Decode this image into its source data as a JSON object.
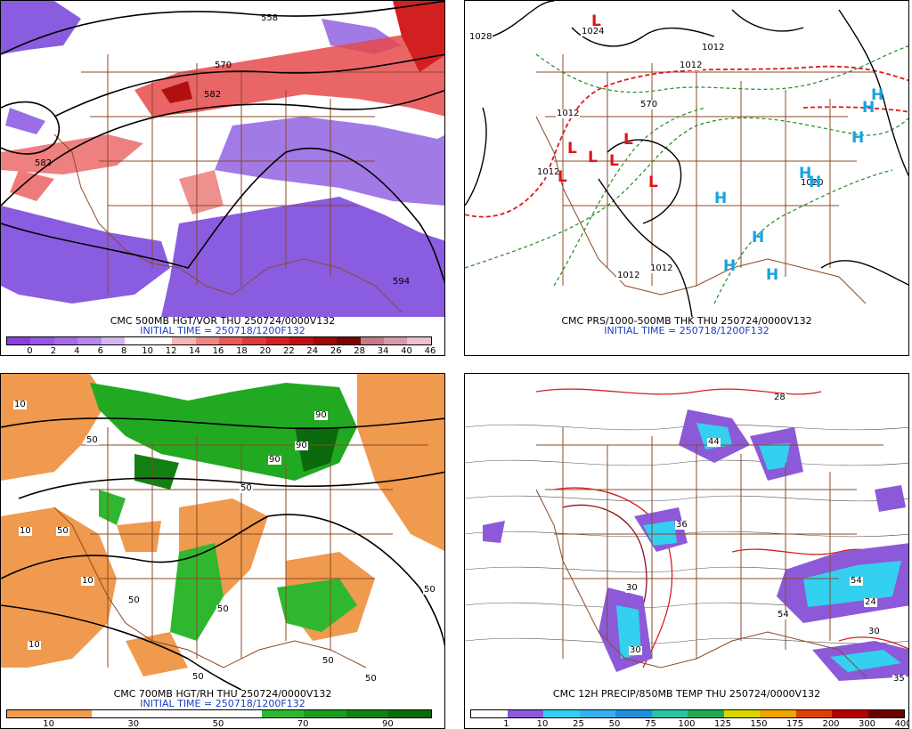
{
  "panels": [
    {
      "caption1": "CMC 500MB HGT/VOR THU 250724/0000V132",
      "caption2": "INITIAL TIME = 250718/1200F132",
      "colorbar_labels": [
        "0",
        "2",
        "4",
        "6",
        "8",
        "10",
        "12",
        "14",
        "16",
        "18",
        "20",
        "22",
        "24",
        "26",
        "28",
        "34",
        "40",
        "46"
      ],
      "colorbar_colors": [
        "#8a3ee0",
        "#9a55e6",
        "#a66ce8",
        "#b686ec",
        "#d2b6f2",
        "#ffffff",
        "#ffffff",
        "#f5b5b5",
        "#ef8686",
        "#e85858",
        "#df3a3a",
        "#d62020",
        "#c01010",
        "#a00808",
        "#7a0404",
        "#c47a8a",
        "#d99aaa",
        "#f0c0cc"
      ],
      "contour_labels": [
        "558",
        "570",
        "582",
        "582",
        "594"
      ]
    },
    {
      "caption1": "CMC PRS/1000-500MB THK THU 250724/0000V132",
      "caption2": "INITIAL TIME = 250718/1200F132",
      "contour_labels": [
        "1028",
        "1024",
        "1012",
        "1012",
        "1012",
        "1012",
        "1012",
        "1012",
        "1020",
        "570"
      ],
      "lows": [
        "L",
        "L",
        "L",
        "L",
        "L",
        "L",
        "L"
      ],
      "highs": [
        "H",
        "H",
        "H",
        "H",
        "H",
        "H",
        "H",
        "H",
        "H"
      ]
    },
    {
      "caption1": "CMC 700MB HGT/RH THU 250724/0000V132",
      "caption2": "INITIAL TIME = 250718/1200F132",
      "colorbar_labels": [
        "10",
        "30",
        "50",
        "70",
        "90"
      ],
      "colorbar_colors": [
        "#ef9a4e",
        "#ef9a4e",
        "#ffffff",
        "#ffffff",
        "#ffffff",
        "#ffffff",
        "#2fb82f",
        "#1e9a1e",
        "#138013",
        "#0b6a0b"
      ],
      "contour_labels": [
        "10",
        "50",
        "90",
        "10",
        "50",
        "50",
        "90",
        "10",
        "50",
        "10",
        "50",
        "50",
        "90",
        "50",
        "50",
        "50"
      ]
    },
    {
      "caption1": "CMC 12H PRECIP/850MB TEMP THU 250724/0000V132",
      "caption2": "",
      "colorbar_labels": [
        "1",
        "10",
        "25",
        "50",
        "75",
        "100",
        "125",
        "150",
        "175",
        "200",
        "300",
        "400"
      ],
      "colorbar_colors": [
        "#ffffff",
        "#8c5ad8",
        "#33d0f0",
        "#36b2ee",
        "#1e90e0",
        "#27c4a6",
        "#1eaa55",
        "#d8d800",
        "#f0a400",
        "#e04000",
        "#b40000",
        "#6a0000"
      ],
      "contour_labels": [
        "28",
        "44",
        "36",
        "30",
        "30",
        "54",
        "54",
        "24",
        "35",
        "30"
      ]
    }
  ]
}
